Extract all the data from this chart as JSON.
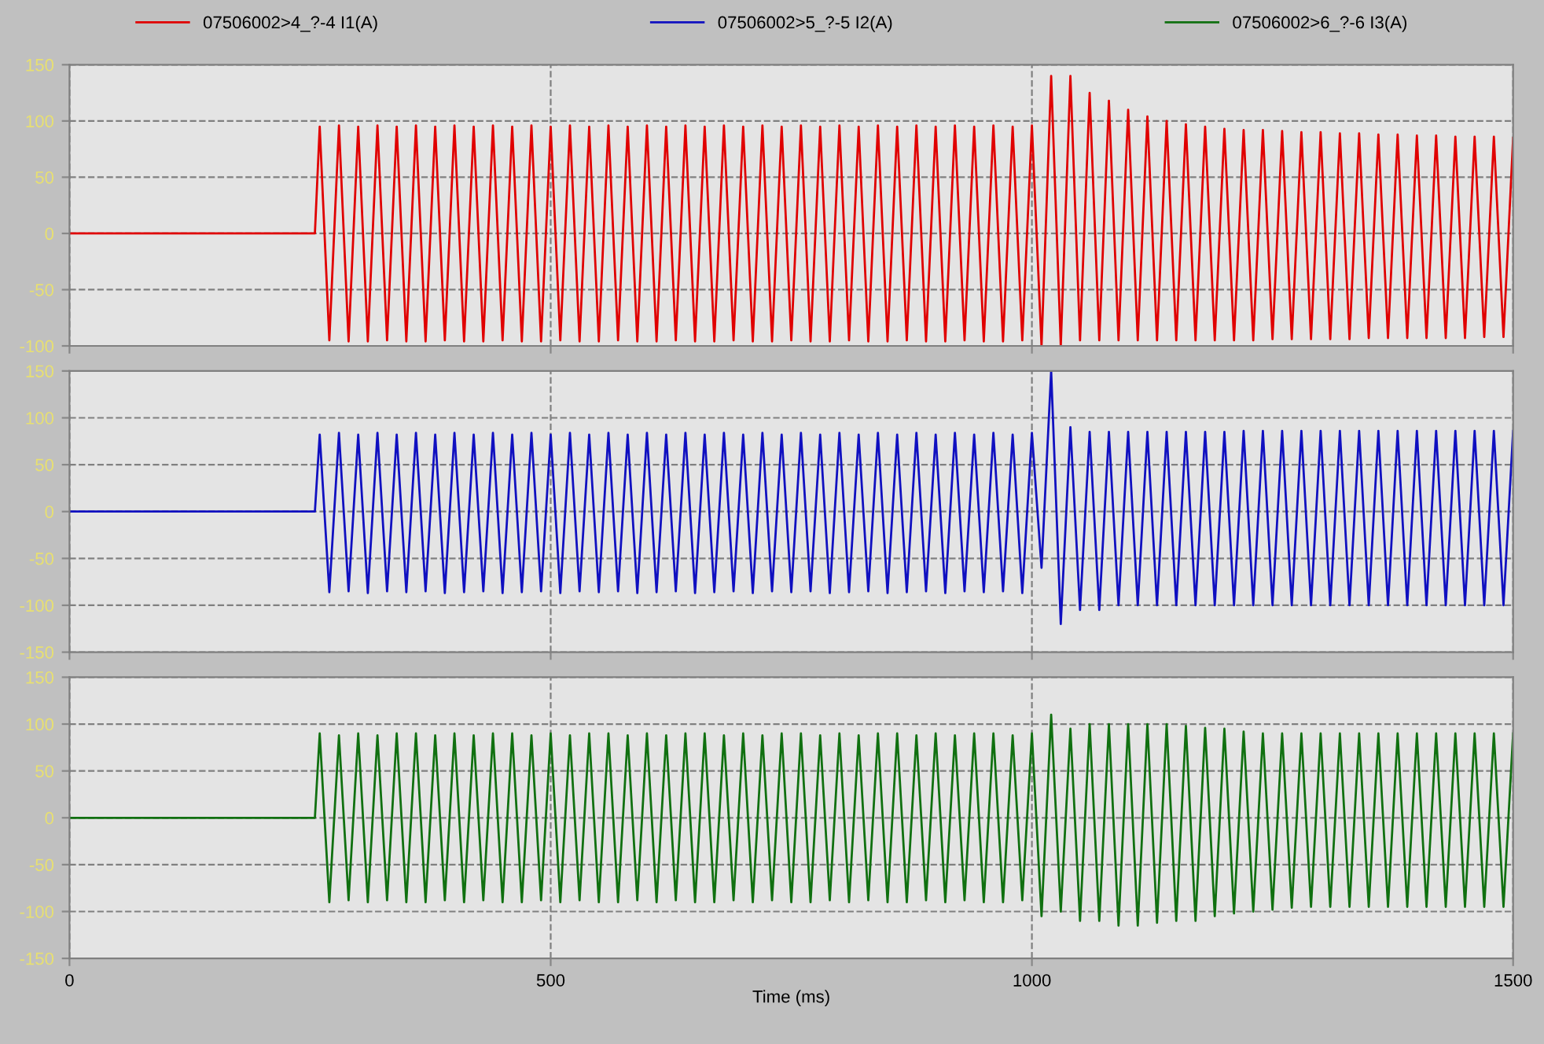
{
  "chart_data": [
    {
      "type": "line",
      "legend": "top",
      "grid": true,
      "line_style": "solid",
      "tick_labels": "y",
      "x": [
        0,
        255,
        260,
        270,
        280,
        290,
        300,
        310,
        320,
        330,
        340,
        350,
        360,
        370,
        380,
        390,
        400,
        410,
        420,
        430,
        440,
        450,
        460,
        470,
        480,
        490,
        500,
        510,
        520,
        530,
        540,
        550,
        560,
        570,
        580,
        590,
        600,
        610,
        620,
        630,
        640,
        650,
        660,
        670,
        680,
        690,
        700,
        710,
        720,
        730,
        740,
        750,
        760,
        770,
        780,
        790,
        800,
        810,
        820,
        830,
        840,
        850,
        860,
        870,
        880,
        890,
        900,
        910,
        920,
        930,
        940,
        950,
        960,
        970,
        980,
        990,
        1000,
        1010,
        1020,
        1030,
        1040,
        1050,
        1060,
        1070,
        1080,
        1090,
        1100,
        1110,
        1120,
        1130,
        1140,
        1150,
        1160,
        1170,
        1180,
        1190,
        1200,
        1210,
        1220,
        1230,
        1240,
        1250,
        1260,
        1270,
        1280,
        1290,
        1300,
        1310,
        1320,
        1330,
        1340,
        1350,
        1360,
        1370,
        1380,
        1390,
        1400,
        1410,
        1420,
        1430,
        1440,
        1450,
        1460,
        1470,
        1480,
        1490,
        1500
      ],
      "xlim": [
        0,
        1500
      ],
      "xticks": [
        0,
        500,
        1000,
        1500
      ],
      "ylim": [
        -100,
        150
      ],
      "yticks": [
        -100,
        -50,
        0,
        50,
        100,
        150
      ],
      "series": [
        {
          "name": "07506002>4_?-4 I1(A)",
          "color": "#e00000",
          "values": [
            0,
            0,
            95,
            -95,
            96,
            -96,
            95,
            -96,
            96,
            -95,
            95,
            -96,
            96,
            -96,
            95,
            -95,
            96,
            -96,
            95,
            -96,
            96,
            -95,
            95,
            -96,
            96,
            -96,
            95,
            -95,
            96,
            -96,
            95,
            -96,
            96,
            -95,
            95,
            -96,
            96,
            -96,
            95,
            -95,
            96,
            -96,
            95,
            -96,
            96,
            -95,
            95,
            -96,
            96,
            -96,
            95,
            -95,
            96,
            -96,
            95,
            -96,
            96,
            -95,
            95,
            -96,
            96,
            -96,
            95,
            -95,
            96,
            -96,
            95,
            -96,
            96,
            -95,
            95,
            -96,
            96,
            -96,
            95,
            -95,
            96,
            -100,
            140,
            -100,
            140,
            -95,
            125,
            -95,
            118,
            -95,
            110,
            -95,
            104,
            -95,
            100,
            -95,
            97,
            -95,
            95,
            -95,
            93,
            -95,
            92,
            -95,
            92,
            -94,
            91,
            -94,
            90,
            -94,
            90,
            -94,
            89,
            -94,
            89,
            -93,
            88,
            -93,
            88,
            -93,
            87,
            -93,
            87,
            -93,
            86,
            -93,
            86,
            -92,
            86,
            -92,
            85
          ]
        }
      ]
    },
    {
      "type": "line",
      "legend": "top",
      "grid": true,
      "line_style": "solid",
      "tick_labels": "y",
      "x": [
        0,
        255,
        260,
        270,
        280,
        290,
        300,
        310,
        320,
        330,
        340,
        350,
        360,
        370,
        380,
        390,
        400,
        410,
        420,
        430,
        440,
        450,
        460,
        470,
        480,
        490,
        500,
        510,
        520,
        530,
        540,
        550,
        560,
        570,
        580,
        590,
        600,
        610,
        620,
        630,
        640,
        650,
        660,
        670,
        680,
        690,
        700,
        710,
        720,
        730,
        740,
        750,
        760,
        770,
        780,
        790,
        800,
        810,
        820,
        830,
        840,
        850,
        860,
        870,
        880,
        890,
        900,
        910,
        920,
        930,
        940,
        950,
        960,
        970,
        980,
        990,
        1000,
        1010,
        1020,
        1030,
        1040,
        1050,
        1060,
        1070,
        1080,
        1090,
        1100,
        1110,
        1120,
        1130,
        1140,
        1150,
        1160,
        1170,
        1180,
        1190,
        1200,
        1210,
        1220,
        1230,
        1240,
        1250,
        1260,
        1270,
        1280,
        1290,
        1300,
        1310,
        1320,
        1330,
        1340,
        1350,
        1360,
        1370,
        1380,
        1390,
        1400,
        1410,
        1420,
        1430,
        1440,
        1450,
        1460,
        1470,
        1480,
        1490,
        1500
      ],
      "xlim": [
        0,
        1500
      ],
      "xticks": [
        0,
        500,
        1000,
        1500
      ],
      "ylim": [
        -150,
        150
      ],
      "yticks": [
        -150,
        -100,
        -50,
        0,
        50,
        100,
        150
      ],
      "series": [
        {
          "name": "07506002>5_?-5 I2(A)",
          "color": "#1010c0",
          "values": [
            0,
            0,
            82,
            -86,
            84,
            -85,
            82,
            -87,
            84,
            -85,
            82,
            -86,
            84,
            -85,
            82,
            -87,
            84,
            -86,
            82,
            -85,
            84,
            -87,
            82,
            -86,
            84,
            -85,
            82,
            -87,
            84,
            -85,
            82,
            -86,
            84,
            -85,
            82,
            -87,
            84,
            -86,
            82,
            -85,
            84,
            -87,
            82,
            -86,
            84,
            -85,
            82,
            -87,
            84,
            -85,
            82,
            -86,
            84,
            -85,
            82,
            -87,
            84,
            -86,
            82,
            -85,
            84,
            -87,
            82,
            -86,
            84,
            -85,
            82,
            -87,
            84,
            -85,
            82,
            -86,
            84,
            -85,
            82,
            -87,
            84,
            -60,
            150,
            -120,
            90,
            -105,
            85,
            -105,
            85,
            -100,
            85,
            -100,
            85,
            -100,
            85,
            -100,
            85,
            -100,
            85,
            -100,
            85,
            -100,
            86,
            -100,
            86,
            -100,
            86,
            -100,
            86,
            -100,
            86,
            -100,
            86,
            -100,
            86,
            -100,
            86,
            -100,
            86,
            -100,
            86,
            -100,
            86,
            -100,
            86,
            -100,
            86,
            -100,
            86,
            -100,
            86
          ]
        }
      ]
    },
    {
      "type": "line",
      "legend": "top",
      "grid": true,
      "line_style": "solid",
      "xlabel": "Time (ms)",
      "x": [
        0,
        255,
        260,
        270,
        280,
        290,
        300,
        310,
        320,
        330,
        340,
        350,
        360,
        370,
        380,
        390,
        400,
        410,
        420,
        430,
        440,
        450,
        460,
        470,
        480,
        490,
        500,
        510,
        520,
        530,
        540,
        550,
        560,
        570,
        580,
        590,
        600,
        610,
        620,
        630,
        640,
        650,
        660,
        670,
        680,
        690,
        700,
        710,
        720,
        730,
        740,
        750,
        760,
        770,
        780,
        790,
        800,
        810,
        820,
        830,
        840,
        850,
        860,
        870,
        880,
        890,
        900,
        910,
        920,
        930,
        940,
        950,
        960,
        970,
        980,
        990,
        1000,
        1010,
        1020,
        1030,
        1040,
        1050,
        1060,
        1070,
        1080,
        1090,
        1100,
        1110,
        1120,
        1130,
        1140,
        1150,
        1160,
        1170,
        1180,
        1190,
        1200,
        1210,
        1220,
        1230,
        1240,
        1250,
        1260,
        1270,
        1280,
        1290,
        1300,
        1310,
        1320,
        1330,
        1340,
        1350,
        1360,
        1370,
        1380,
        1390,
        1400,
        1410,
        1420,
        1430,
        1440,
        1450,
        1460,
        1470,
        1480,
        1490,
        1500
      ],
      "xlim": [
        0,
        1500
      ],
      "xticks": [
        0,
        500,
        1000,
        1500
      ],
      "ylim": [
        -150,
        150
      ],
      "yticks": [
        -150,
        -100,
        -50,
        0,
        50,
        100,
        150
      ],
      "series": [
        {
          "name": "07506002>6_?-6 I3(A)",
          "color": "#107010",
          "values": [
            0,
            0,
            90,
            -90,
            88,
            -88,
            90,
            -90,
            88,
            -88,
            90,
            -90,
            90,
            -90,
            88,
            -88,
            90,
            -90,
            88,
            -88,
            90,
            -90,
            90,
            -90,
            88,
            -88,
            90,
            -90,
            88,
            -88,
            90,
            -90,
            90,
            -90,
            88,
            -88,
            90,
            -90,
            88,
            -88,
            90,
            -90,
            90,
            -90,
            88,
            -88,
            90,
            -90,
            88,
            -88,
            90,
            -90,
            90,
            -90,
            88,
            -88,
            90,
            -90,
            88,
            -88,
            90,
            -90,
            90,
            -90,
            88,
            -88,
            90,
            -90,
            88,
            -88,
            90,
            -90,
            90,
            -90,
            88,
            -88,
            90,
            -105,
            110,
            -100,
            95,
            -110,
            100,
            -110,
            100,
            -115,
            100,
            -115,
            100,
            -112,
            100,
            -110,
            98,
            -110,
            96,
            -105,
            95,
            -102,
            92,
            -100,
            90,
            -98,
            90,
            -96,
            90,
            -95,
            90,
            -95,
            90,
            -95,
            90,
            -95,
            90,
            -95,
            90,
            -95,
            90,
            -95,
            90,
            -95,
            90,
            -95,
            90,
            -95,
            90,
            -95,
            90
          ]
        }
      ]
    }
  ]
}
